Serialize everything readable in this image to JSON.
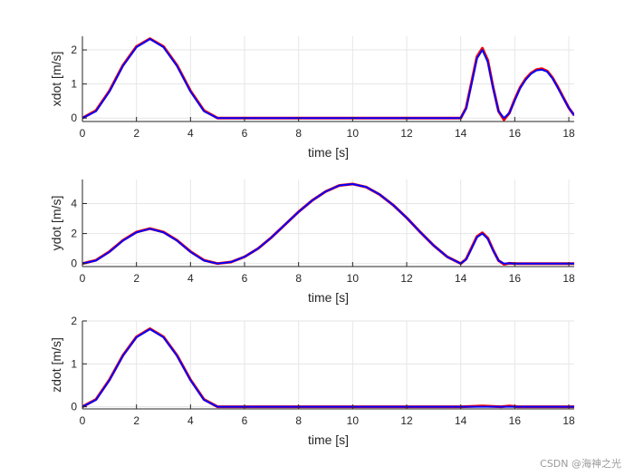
{
  "watermark": "CSDN @海神之光",
  "colors": {
    "reference": "#ff0000",
    "actual": "#0000ff",
    "grid": "#e6e6e6",
    "axis": "#262626"
  },
  "chart_data": [
    {
      "type": "line",
      "xlabel": "time [s]",
      "ylabel": "xdot [m/s]",
      "xlim": [
        0,
        18.2
      ],
      "ylim": [
        -0.1,
        2.4
      ],
      "xticks": [
        0,
        2,
        4,
        6,
        8,
        10,
        12,
        14,
        16,
        18
      ],
      "yticks": [
        0,
        1,
        2
      ],
      "grid": true,
      "series": [
        {
          "color": "#ff0000",
          "x": [
            0,
            0.5,
            1,
            1.5,
            2,
            2.5,
            3,
            3.5,
            4,
            4.5,
            5,
            6,
            8,
            10,
            12,
            14,
            14.2,
            14.4,
            14.6,
            14.8,
            15,
            15.2,
            15.4,
            15.6,
            15.8,
            16,
            16.2,
            16.4,
            16.6,
            16.8,
            17,
            17.2,
            17.4,
            17.6,
            17.8,
            18,
            18.2
          ],
          "y": [
            0,
            0.22,
            0.8,
            1.55,
            2.1,
            2.33,
            2.1,
            1.55,
            0.8,
            0.22,
            0,
            0,
            0,
            0,
            0,
            0,
            0.3,
            1.05,
            1.8,
            2.05,
            1.7,
            0.9,
            0.2,
            -0.05,
            0.15,
            0.55,
            0.9,
            1.15,
            1.32,
            1.42,
            1.45,
            1.38,
            1.18,
            0.9,
            0.6,
            0.3,
            0.08
          ]
        },
        {
          "color": "#0000ff",
          "x": [
            0,
            0.5,
            1,
            1.5,
            2,
            2.5,
            3,
            3.5,
            4,
            4.5,
            5,
            6,
            8,
            10,
            12,
            14,
            14.2,
            14.4,
            14.6,
            14.8,
            15,
            15.2,
            15.4,
            15.6,
            15.8,
            16,
            16.2,
            16.4,
            16.6,
            16.8,
            17,
            17.2,
            17.4,
            17.6,
            17.8,
            18,
            18.2
          ],
          "y": [
            0,
            0.2,
            0.78,
            1.53,
            2.08,
            2.32,
            2.08,
            1.53,
            0.78,
            0.2,
            0,
            0,
            0,
            0,
            0,
            0,
            0.28,
            1.0,
            1.75,
            2.0,
            1.65,
            0.88,
            0.2,
            0.0,
            0.15,
            0.52,
            0.88,
            1.12,
            1.3,
            1.4,
            1.42,
            1.36,
            1.16,
            0.88,
            0.58,
            0.3,
            0.08
          ]
        }
      ]
    },
    {
      "type": "line",
      "xlabel": "time [s]",
      "ylabel": "ydot [m/s]",
      "xlim": [
        0,
        18.2
      ],
      "ylim": [
        -0.2,
        5.6
      ],
      "xticks": [
        0,
        2,
        4,
        6,
        8,
        10,
        12,
        14,
        16,
        18
      ],
      "yticks": [
        0,
        2,
        4
      ],
      "grid": true,
      "series": [
        {
          "color": "#ff0000",
          "x": [
            0,
            0.5,
            1,
            1.5,
            2,
            2.5,
            3,
            3.5,
            4,
            4.5,
            5,
            5.5,
            6,
            6.5,
            7,
            7.5,
            8,
            8.5,
            9,
            9.5,
            10,
            10.5,
            11,
            11.5,
            12,
            12.5,
            13,
            13.5,
            14,
            14.2,
            14.4,
            14.6,
            14.8,
            15,
            15.2,
            15.4,
            15.6,
            15.8,
            16,
            18.2
          ],
          "y": [
            0,
            0.22,
            0.8,
            1.55,
            2.1,
            2.33,
            2.1,
            1.55,
            0.8,
            0.22,
            0,
            0.1,
            0.45,
            1.0,
            1.75,
            2.6,
            3.45,
            4.2,
            4.8,
            5.2,
            5.3,
            5.1,
            4.6,
            3.9,
            3.05,
            2.1,
            1.2,
            0.45,
            0,
            0.3,
            1.05,
            1.8,
            2.05,
            1.7,
            0.9,
            0.2,
            -0.05,
            0.02,
            0,
            0
          ]
        },
        {
          "color": "#0000ff",
          "x": [
            0,
            0.5,
            1,
            1.5,
            2,
            2.5,
            3,
            3.5,
            4,
            4.5,
            5,
            5.5,
            6,
            6.5,
            7,
            7.5,
            8,
            8.5,
            9,
            9.5,
            10,
            10.5,
            11,
            11.5,
            12,
            12.5,
            13,
            13.5,
            14,
            14.2,
            14.4,
            14.6,
            14.8,
            15,
            15.2,
            15.4,
            15.6,
            15.8,
            16,
            18.2
          ],
          "y": [
            0,
            0.2,
            0.78,
            1.53,
            2.08,
            2.32,
            2.08,
            1.53,
            0.78,
            0.2,
            0,
            0.1,
            0.45,
            1.0,
            1.75,
            2.6,
            3.45,
            4.2,
            4.8,
            5.2,
            5.3,
            5.1,
            4.6,
            3.9,
            3.05,
            2.1,
            1.2,
            0.45,
            0,
            0.28,
            1.0,
            1.75,
            2.0,
            1.65,
            0.88,
            0.2,
            0.0,
            0.02,
            0,
            0
          ]
        }
      ]
    },
    {
      "type": "line",
      "xlabel": "time [s]",
      "ylabel": "zdot [m/s]",
      "xlim": [
        0,
        18.2
      ],
      "ylim": [
        -0.05,
        2.0
      ],
      "xticks": [
        0,
        2,
        4,
        6,
        8,
        10,
        12,
        14,
        16,
        18
      ],
      "yticks": [
        0,
        1,
        2
      ],
      "grid": true,
      "series": [
        {
          "color": "#ff0000",
          "x": [
            0,
            0.5,
            1,
            1.5,
            2,
            2.5,
            3,
            3.5,
            4,
            4.5,
            5,
            6,
            8,
            10,
            12,
            14,
            14.5,
            14.8,
            15.1,
            15.5,
            15.8,
            16.1,
            18.2
          ],
          "y": [
            0,
            0.17,
            0.63,
            1.2,
            1.63,
            1.82,
            1.63,
            1.2,
            0.63,
            0.17,
            0,
            0,
            0,
            0,
            0,
            0,
            0.01,
            0.02,
            0.01,
            0,
            0.02,
            0,
            0
          ]
        },
        {
          "color": "#0000ff",
          "x": [
            0,
            0.5,
            1,
            1.5,
            2,
            2.5,
            3,
            3.5,
            4,
            4.5,
            5,
            6,
            8,
            10,
            12,
            14,
            18.2
          ],
          "y": [
            0,
            0.16,
            0.62,
            1.19,
            1.62,
            1.81,
            1.62,
            1.19,
            0.62,
            0.16,
            0,
            0,
            0,
            0,
            0,
            0,
            0
          ]
        }
      ]
    }
  ]
}
